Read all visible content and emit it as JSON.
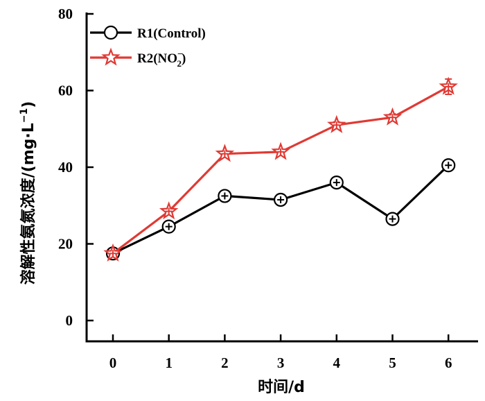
{
  "chart_data": {
    "type": "line",
    "title": "",
    "xlabel": "时间/d",
    "ylabel": "溶解性氨氮浓度/(mg·L⁻¹)",
    "ylabel_parts": {
      "main": "溶解性氨氮浓度/(mg·L",
      "sup": "−1",
      "close": ")"
    },
    "x": [
      0,
      1,
      2,
      3,
      4,
      5,
      6
    ],
    "x_tick_labels": [
      "0",
      "1",
      "2",
      "3",
      "4",
      "5",
      "6"
    ],
    "y_tick_labels": [
      "0",
      "20",
      "40",
      "60",
      "80"
    ],
    "y_ticks": [
      0,
      20,
      40,
      60,
      80
    ],
    "xlim": [
      -0.5,
      6.5
    ],
    "ylim": [
      0,
      80
    ],
    "grid": false,
    "legend_position": "top-left",
    "series": [
      {
        "name": "R1(Control)",
        "label_parts": {
          "main": "R1(Control)"
        },
        "color": "#000000",
        "marker": "circle",
        "values": [
          17.5,
          24.5,
          32.5,
          31.5,
          36.0,
          26.5,
          40.5
        ],
        "errors": [
          0.8,
          1.2,
          1.3,
          0.8,
          1.0,
          0.7,
          0.9
        ]
      },
      {
        "name": "R2(NO₂⁻)",
        "label_parts": {
          "main": "R2(NO",
          "sub": "2",
          "sup": "−",
          "close": ")"
        },
        "color": "#e03a34",
        "marker": "star",
        "values": [
          17.5,
          28.5,
          43.5,
          44.0,
          51.0,
          53.0,
          61.0
        ],
        "errors": [
          0.5,
          0.6,
          0.7,
          0.6,
          0.8,
          0.9,
          2.0
        ]
      }
    ]
  }
}
